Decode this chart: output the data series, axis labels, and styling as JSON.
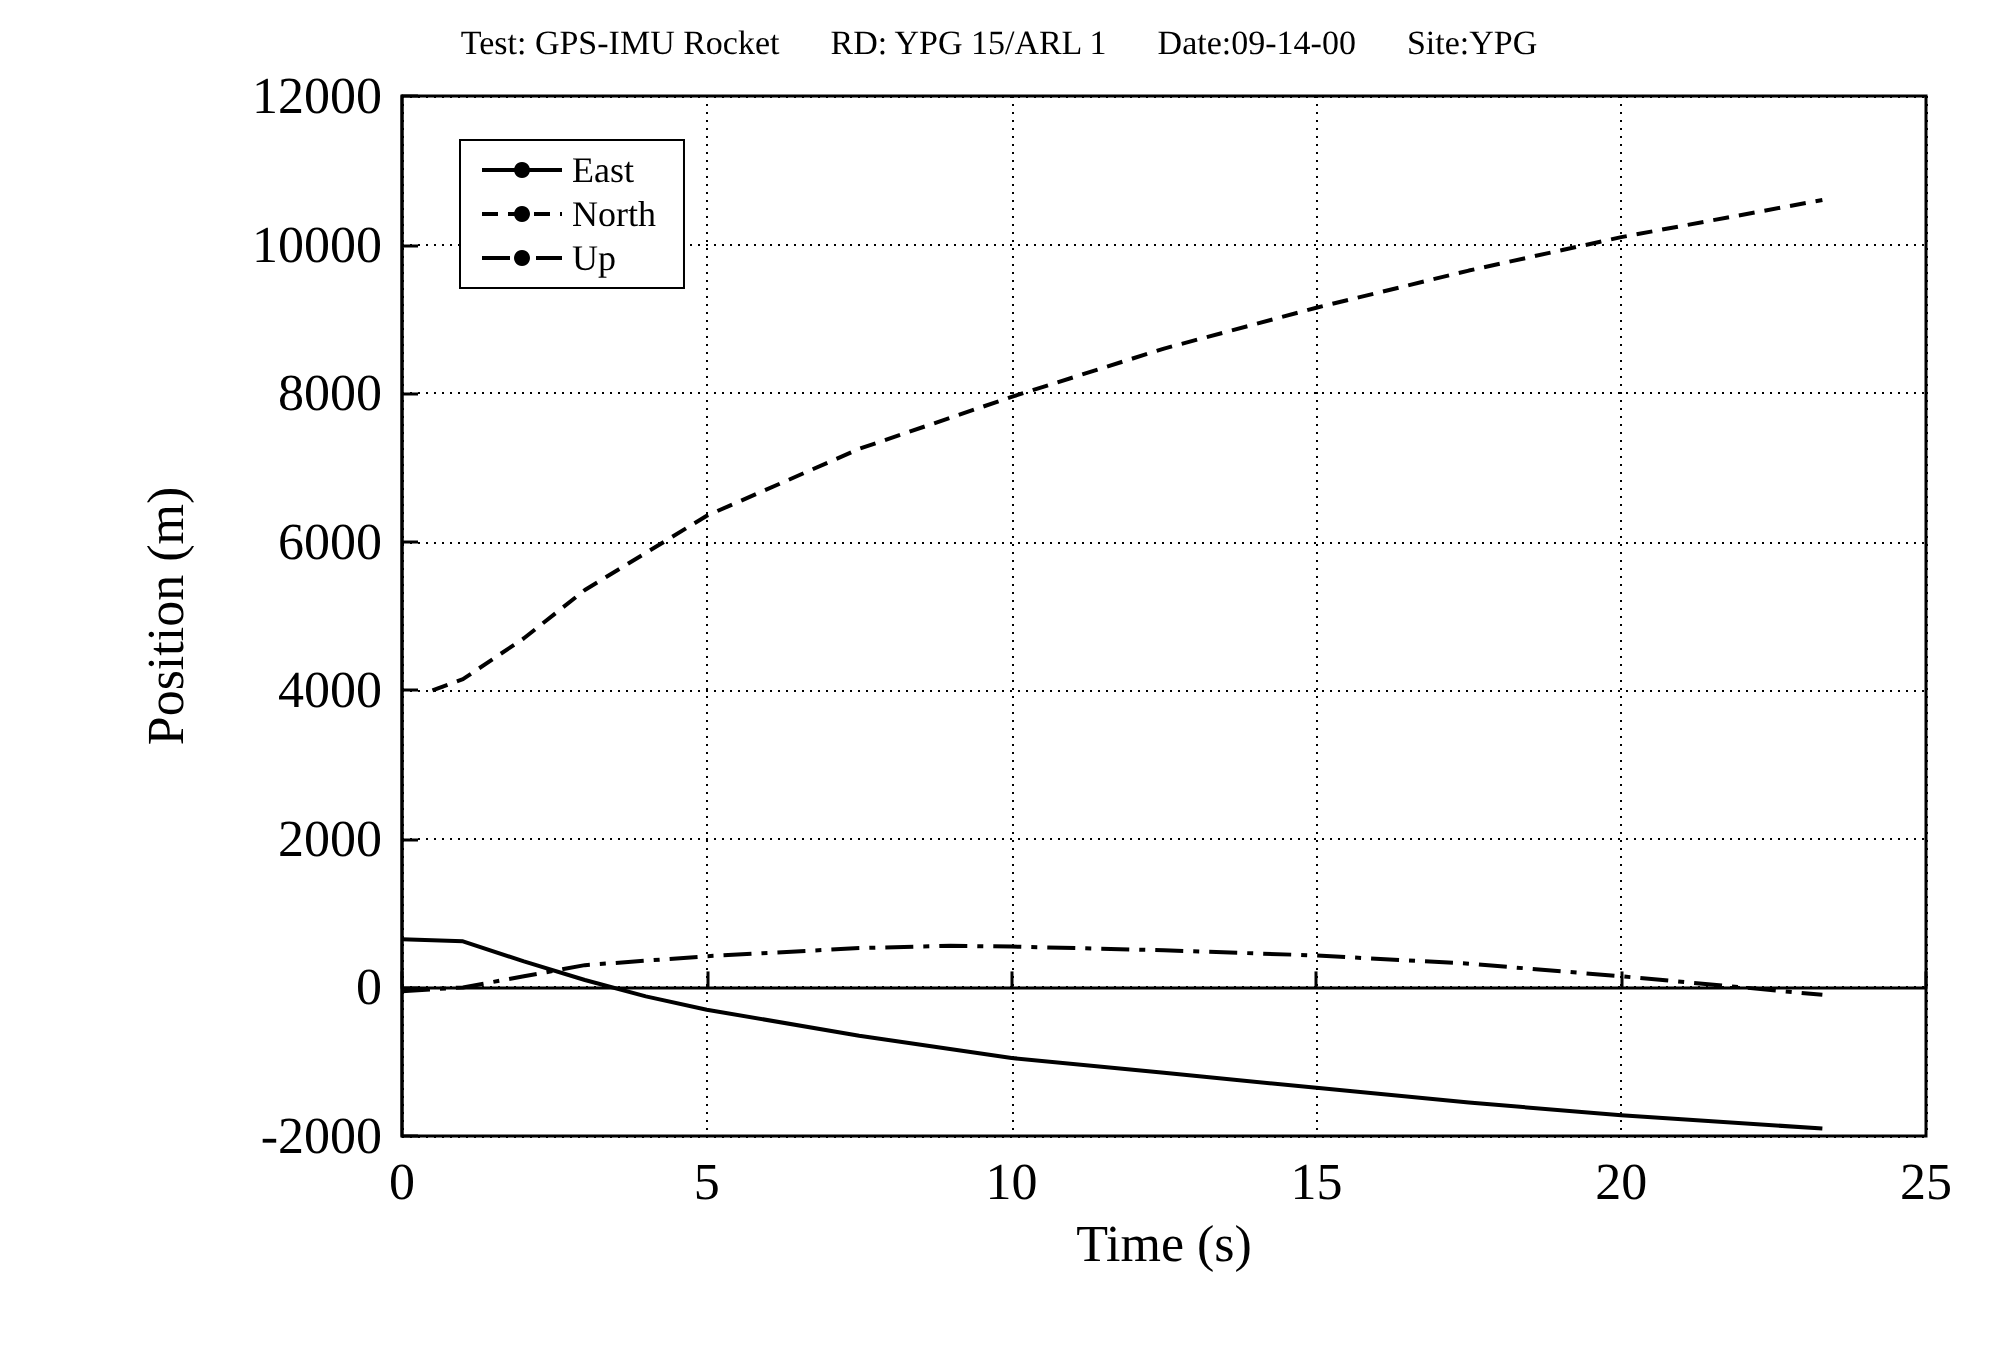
{
  "chart_data": {
    "type": "line",
    "title": "Test: GPS-IMU Rocket      RD: YPG 15/ARL 1      Date:09-14-00      Site:YPG",
    "xlabel": "Time (s)",
    "ylabel": "Position (m)",
    "xlim": [
      0,
      25
    ],
    "xticks": [
      0,
      5,
      10,
      15,
      20,
      25
    ],
    "ylim": [
      -2000,
      12000
    ],
    "yticks": [
      -2000,
      0,
      2000,
      4000,
      6000,
      8000,
      10000,
      12000
    ],
    "grid": true,
    "legend": "top left",
    "marker": "none",
    "series": [
      {
        "name": "East",
        "color": "#000000",
        "line_style": "solid",
        "x": [
          0,
          1,
          2,
          3,
          4,
          5,
          7.5,
          10,
          12.5,
          15,
          17.5,
          20,
          23.3
        ],
        "values": [
          650,
          620,
          350,
          100,
          -120,
          -300,
          -650,
          -950,
          -1150,
          -1350,
          -1550,
          -1720,
          -1900
        ]
      },
      {
        "name": "North",
        "color": "#000000",
        "line_style": "dashed",
        "x": [
          0.5,
          1,
          2,
          3,
          5,
          7.5,
          10,
          12.5,
          15,
          17.5,
          20,
          23.3
        ],
        "values": [
          4000,
          4150,
          4700,
          5350,
          6350,
          7250,
          7950,
          8600,
          9150,
          9650,
          10100,
          10600
        ]
      },
      {
        "name": "Up",
        "color": "#000000",
        "line_style": "dashdot",
        "x": [
          0,
          1,
          2,
          3,
          5,
          7.5,
          9,
          10,
          12.5,
          15,
          17.5,
          20,
          22,
          23.3
        ],
        "values": [
          -50,
          0,
          150,
          300,
          420,
          530,
          560,
          550,
          500,
          430,
          320,
          150,
          0,
          -100
        ]
      }
    ]
  }
}
